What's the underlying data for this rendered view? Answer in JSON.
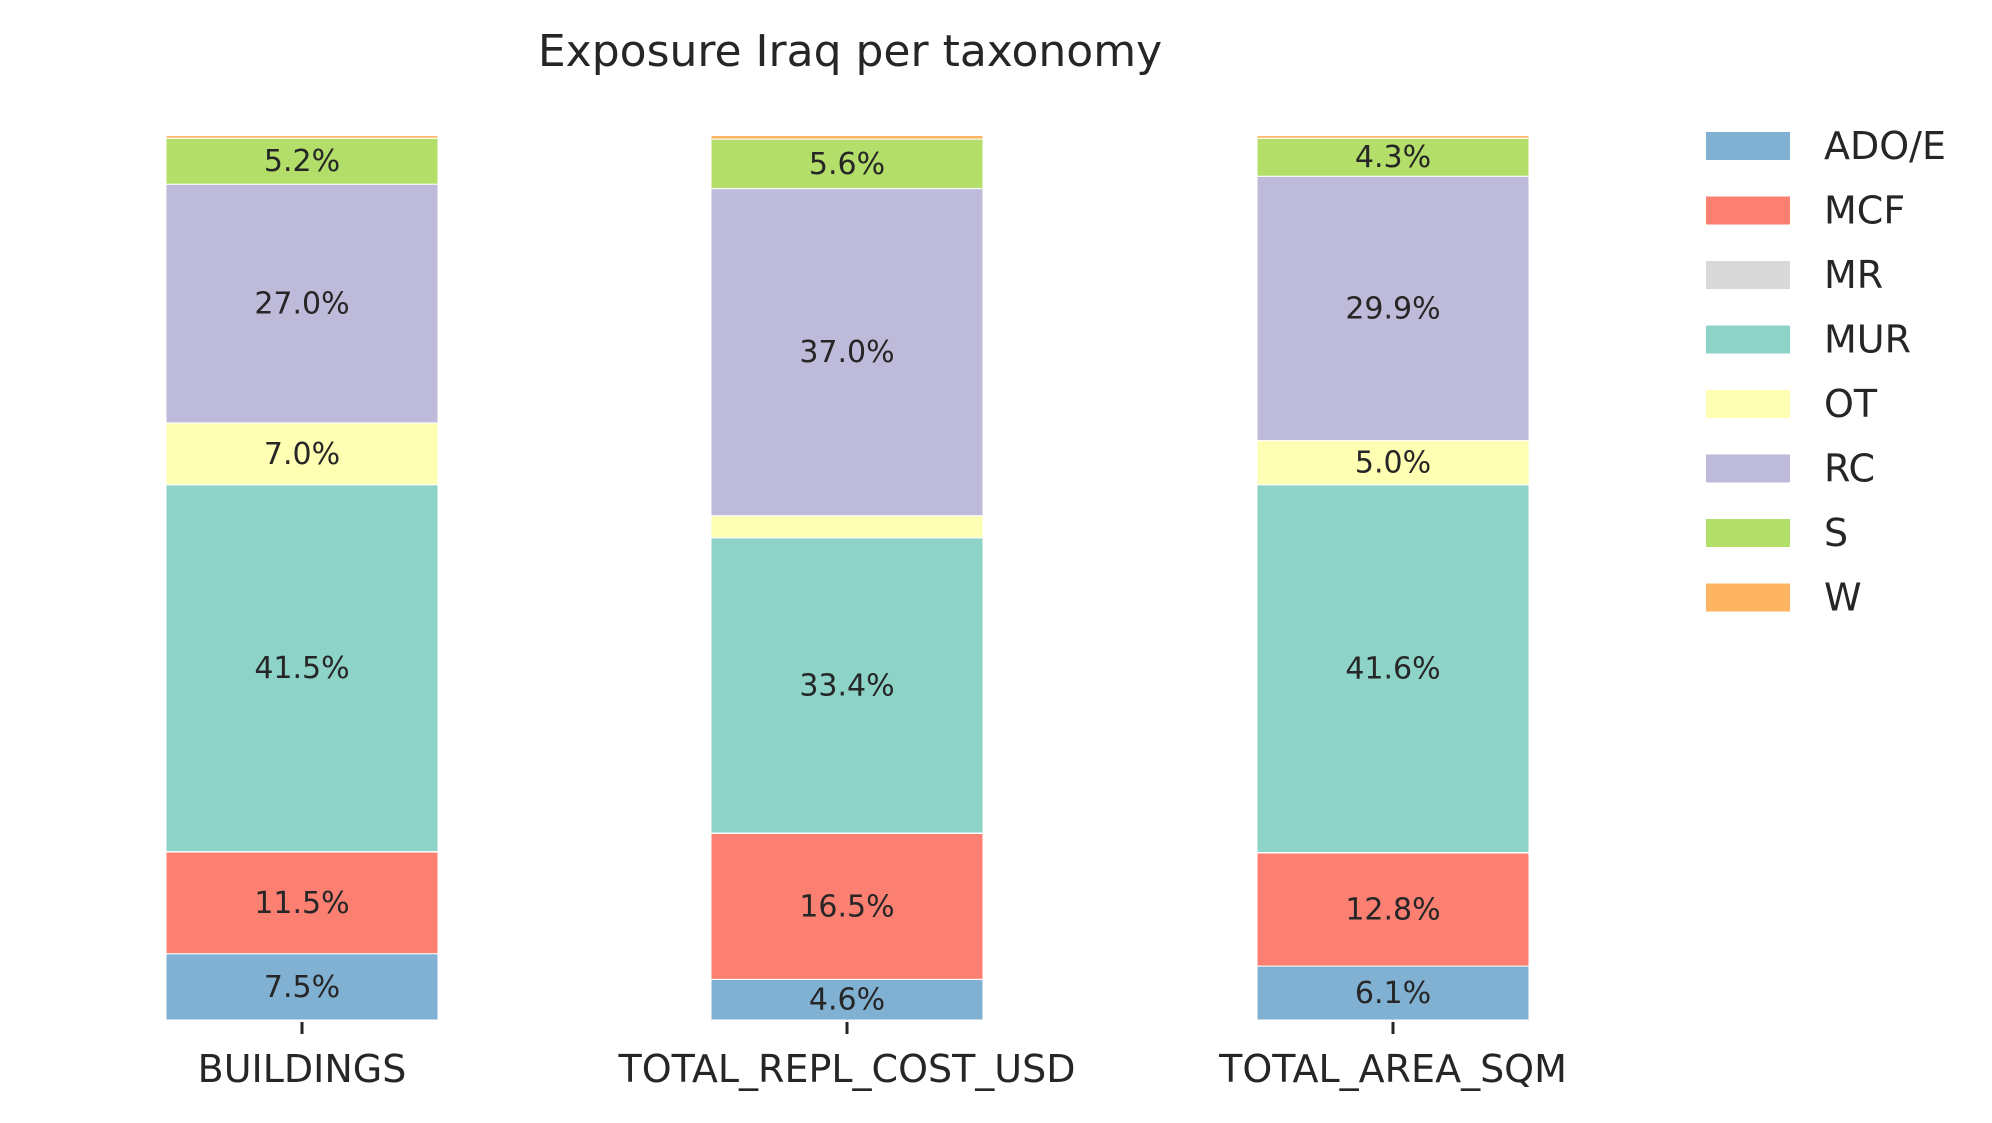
{
  "chart_data": {
    "type": "bar",
    "stacked": true,
    "normalized_percent": true,
    "title": "Exposure Iraq per taxonomy",
    "xlabel": "",
    "ylabel": "",
    "ylim": [
      0,
      100
    ],
    "grid": false,
    "legend_position": "top-right",
    "categories": [
      "BUILDINGS",
      "TOTAL_REPL_COST_USD",
      "TOTAL_AREA_SQM"
    ],
    "series": [
      {
        "name": "ADO/E",
        "color": "#80b1d3",
        "values": [
          7.5,
          4.6,
          6.1
        ],
        "labels": [
          "7.5%",
          "4.6%",
          "6.1%"
        ]
      },
      {
        "name": "MCF",
        "color": "#fb8072",
        "values": [
          11.5,
          16.5,
          12.8
        ],
        "labels": [
          "11.5%",
          "16.5%",
          "12.8%"
        ]
      },
      {
        "name": "MR",
        "color": "#d9d9d9",
        "values": [
          0.05,
          0.05,
          0.05
        ],
        "labels": [
          "",
          "",
          ""
        ]
      },
      {
        "name": "MUR",
        "color": "#8dd3c7",
        "values": [
          41.5,
          33.4,
          41.6
        ],
        "labels": [
          "41.5%",
          "33.4%",
          "41.6%"
        ]
      },
      {
        "name": "OT",
        "color": "#ffffb3",
        "values": [
          7.0,
          2.5,
          5.0
        ],
        "labels": [
          "7.0%",
          "",
          "5.0%"
        ]
      },
      {
        "name": "RC",
        "color": "#bebada",
        "values": [
          27.0,
          37.0,
          29.9
        ],
        "labels": [
          "27.0%",
          "37.0%",
          "29.9%"
        ]
      },
      {
        "name": "S",
        "color": "#b3de69",
        "values": [
          5.2,
          5.6,
          4.3
        ],
        "labels": [
          "5.2%",
          "5.6%",
          "4.3%"
        ]
      },
      {
        "name": "W",
        "color": "#fdb462",
        "values": [
          0.3,
          0.4,
          0.3
        ],
        "labels": [
          "",
          "",
          ""
        ]
      }
    ]
  }
}
